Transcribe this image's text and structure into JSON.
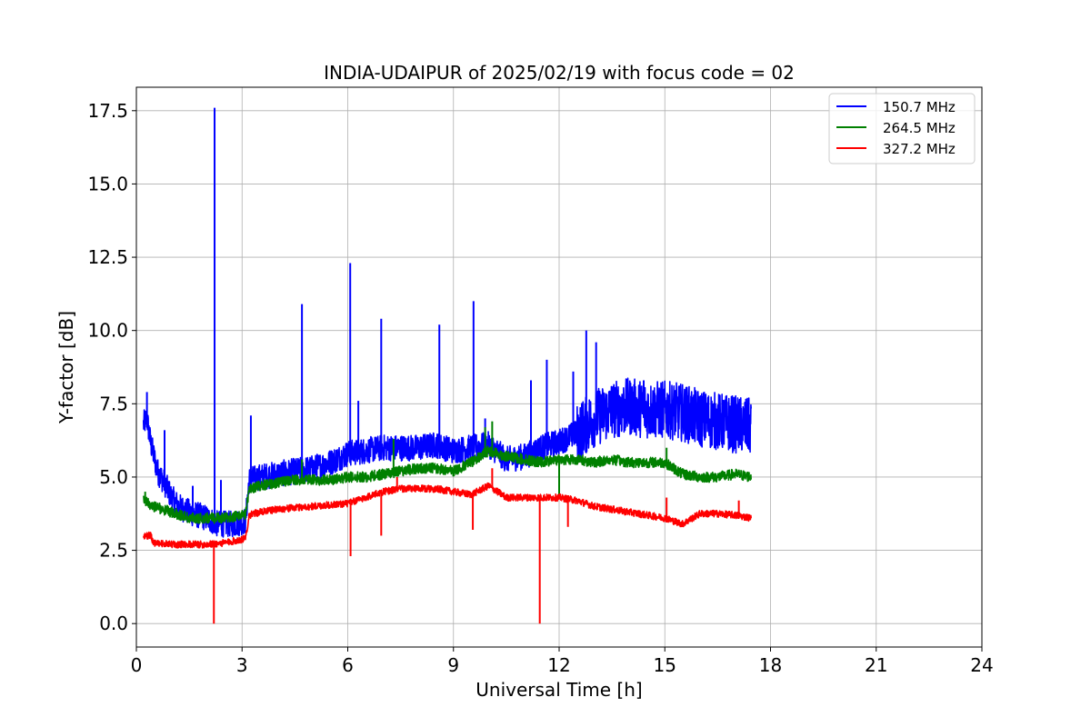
{
  "chart_data": {
    "type": "line",
    "title": "INDIA-UDAIPUR of 2025/02/19 with focus code = 02",
    "xlabel": "Universal Time [h]",
    "ylabel": "Y-factor [dB]",
    "xlim": [
      0,
      24
    ],
    "ylim": [
      -0.8,
      18.3
    ],
    "x_ticks": [
      0,
      3,
      6,
      9,
      12,
      15,
      18,
      21,
      24
    ],
    "y_ticks": [
      0.0,
      2.5,
      5.0,
      7.5,
      10.0,
      12.5,
      15.0,
      17.5
    ],
    "x_tick_labels": [
      "0",
      "3",
      "6",
      "9",
      "12",
      "15",
      "18",
      "21",
      "24"
    ],
    "y_tick_labels": [
      "0.0",
      "2.5",
      "5.0",
      "7.5",
      "10.0",
      "12.5",
      "15.0",
      "17.5"
    ],
    "grid": true,
    "legend_position": "top-right",
    "series": [
      {
        "name": "150.7 MHz",
        "color": "#0000ff",
        "noise": 0.45,
        "x": [
          0.2,
          0.3,
          0.4,
          0.6,
          0.8,
          1.0,
          1.2,
          1.5,
          2.0,
          2.3,
          2.8,
          3.1,
          3.2,
          3.5,
          4.0,
          4.5,
          5.0,
          5.5,
          6.0,
          6.5,
          7.0,
          7.5,
          8.0,
          8.5,
          9.0,
          9.5,
          10.0,
          10.5,
          11.0,
          11.5,
          12.0,
          12.5,
          13.0,
          13.5,
          14.0,
          14.5,
          15.0,
          15.5,
          16.0,
          16.5,
          17.0,
          17.45
        ],
        "values": [
          6.8,
          7.0,
          6.2,
          5.2,
          4.8,
          4.3,
          4.0,
          3.8,
          3.6,
          3.4,
          3.4,
          3.5,
          4.9,
          5.0,
          5.1,
          5.2,
          5.3,
          5.5,
          5.8,
          5.9,
          6.0,
          6.0,
          6.0,
          6.1,
          5.9,
          6.0,
          6.1,
          5.6,
          5.7,
          6.0,
          6.2,
          6.5,
          7.0,
          7.3,
          7.4,
          7.3,
          7.3,
          7.2,
          7.0,
          6.9,
          6.8,
          6.7
        ],
        "spikes": [
          [
            0.3,
            7.9
          ],
          [
            0.8,
            6.6
          ],
          [
            1.6,
            4.7
          ],
          [
            2.22,
            17.6
          ],
          [
            2.4,
            4.9
          ],
          [
            3.25,
            7.1
          ],
          [
            4.7,
            10.9
          ],
          [
            6.07,
            12.3
          ],
          [
            6.3,
            7.6
          ],
          [
            6.95,
            10.4
          ],
          [
            8.6,
            10.2
          ],
          [
            9.57,
            11.0
          ],
          [
            9.9,
            7.0
          ],
          [
            11.2,
            8.3
          ],
          [
            11.65,
            9.0
          ],
          [
            12.4,
            8.6
          ],
          [
            12.77,
            10.0
          ],
          [
            13.05,
            9.6
          ],
          [
            14.4,
            8.3
          ]
        ]
      },
      {
        "name": "264.5 MHz",
        "color": "#008000",
        "noise": 0.18,
        "x": [
          0.2,
          0.5,
          1.0,
          1.5,
          2.0,
          2.5,
          3.1,
          3.2,
          3.5,
          4.0,
          4.5,
          5.0,
          5.5,
          6.0,
          6.5,
          7.0,
          7.5,
          8.0,
          8.5,
          9.0,
          9.5,
          10.0,
          10.5,
          11.0,
          11.5,
          12.0,
          12.5,
          13.0,
          13.5,
          14.0,
          14.5,
          15.0,
          15.5,
          16.0,
          16.5,
          17.0,
          17.45
        ],
        "values": [
          4.2,
          4.0,
          3.8,
          3.6,
          3.6,
          3.6,
          3.7,
          4.6,
          4.7,
          4.8,
          4.9,
          4.9,
          4.9,
          5.0,
          5.0,
          5.1,
          5.2,
          5.3,
          5.3,
          5.2,
          5.5,
          5.9,
          5.7,
          5.6,
          5.5,
          5.6,
          5.6,
          5.5,
          5.6,
          5.5,
          5.5,
          5.5,
          5.1,
          5.0,
          5.0,
          5.1,
          5.0
        ],
        "spikes": [
          [
            0.25,
            4.5
          ],
          [
            4.7,
            5.6
          ],
          [
            7.3,
            6.3
          ],
          [
            9.9,
            6.7
          ],
          [
            10.1,
            6.9
          ],
          [
            12.0,
            4.3
          ],
          [
            15.05,
            6.0
          ]
        ]
      },
      {
        "name": "327.2 MHz",
        "color": "#ff0000",
        "noise": 0.12,
        "x": [
          0.2,
          0.4,
          0.5,
          1.0,
          1.5,
          2.0,
          2.5,
          3.1,
          3.2,
          3.5,
          4.0,
          4.5,
          5.0,
          5.5,
          6.0,
          6.5,
          7.0,
          7.5,
          8.0,
          8.5,
          9.0,
          9.5,
          10.0,
          10.5,
          11.0,
          11.5,
          12.0,
          12.5,
          13.0,
          13.5,
          14.0,
          14.5,
          15.0,
          15.5,
          16.0,
          16.5,
          17.0,
          17.45
        ],
        "values": [
          3.0,
          3.0,
          2.75,
          2.7,
          2.7,
          2.7,
          2.75,
          2.9,
          3.7,
          3.8,
          3.9,
          3.95,
          4.0,
          4.05,
          4.1,
          4.3,
          4.5,
          4.6,
          4.6,
          4.6,
          4.5,
          4.4,
          4.7,
          4.3,
          4.3,
          4.3,
          4.3,
          4.2,
          4.0,
          3.9,
          3.8,
          3.7,
          3.6,
          3.4,
          3.75,
          3.75,
          3.7,
          3.6
        ],
        "spikes": [
          [
            2.2,
            0.0
          ],
          [
            6.08,
            2.3
          ],
          [
            6.95,
            3.0
          ],
          [
            7.4,
            5.0
          ],
          [
            9.55,
            3.2
          ],
          [
            10.1,
            5.3
          ],
          [
            11.45,
            0.0
          ],
          [
            12.25,
            3.3
          ],
          [
            15.05,
            4.3
          ],
          [
            17.1,
            4.2
          ]
        ]
      }
    ]
  }
}
